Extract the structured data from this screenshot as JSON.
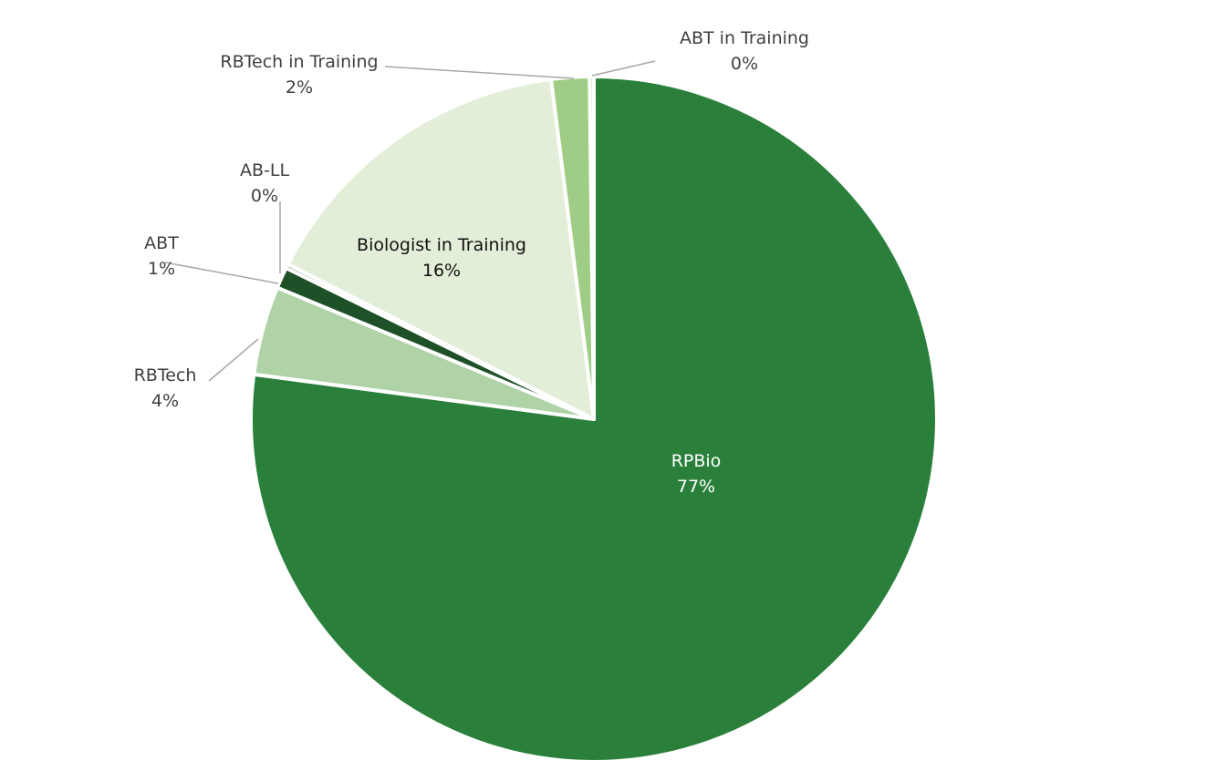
{
  "chart_data": {
    "type": "pie",
    "title": "",
    "slices": [
      {
        "label": "RPBio",
        "percent_label": "77%",
        "value": 77.4,
        "color": "#2a803b"
      },
      {
        "label": "RBTech",
        "percent_label": "4%",
        "value": 4.2,
        "color": "#afd2a7"
      },
      {
        "label": "ABT",
        "percent_label": "1%",
        "value": 1.0,
        "color": "#1e5128"
      },
      {
        "label": "AB-LL",
        "percent_label": "0%",
        "value": 0.2,
        "color": "#4f9a5c"
      },
      {
        "label": "Biologist in Training",
        "percent_label": "16%",
        "value": 15.6,
        "color": "#e3eed9"
      },
      {
        "label": "RBTech in Training",
        "percent_label": "2%",
        "value": 1.8,
        "color": "#a0cd86"
      },
      {
        "label": "ABT in Training",
        "percent_label": "0%",
        "value": 0.2,
        "color": "#c7e1b5"
      }
    ],
    "start_angle_deg": 0,
    "direction": "clockwise",
    "legend": "none",
    "data_labels": "category-name-and-percent"
  }
}
